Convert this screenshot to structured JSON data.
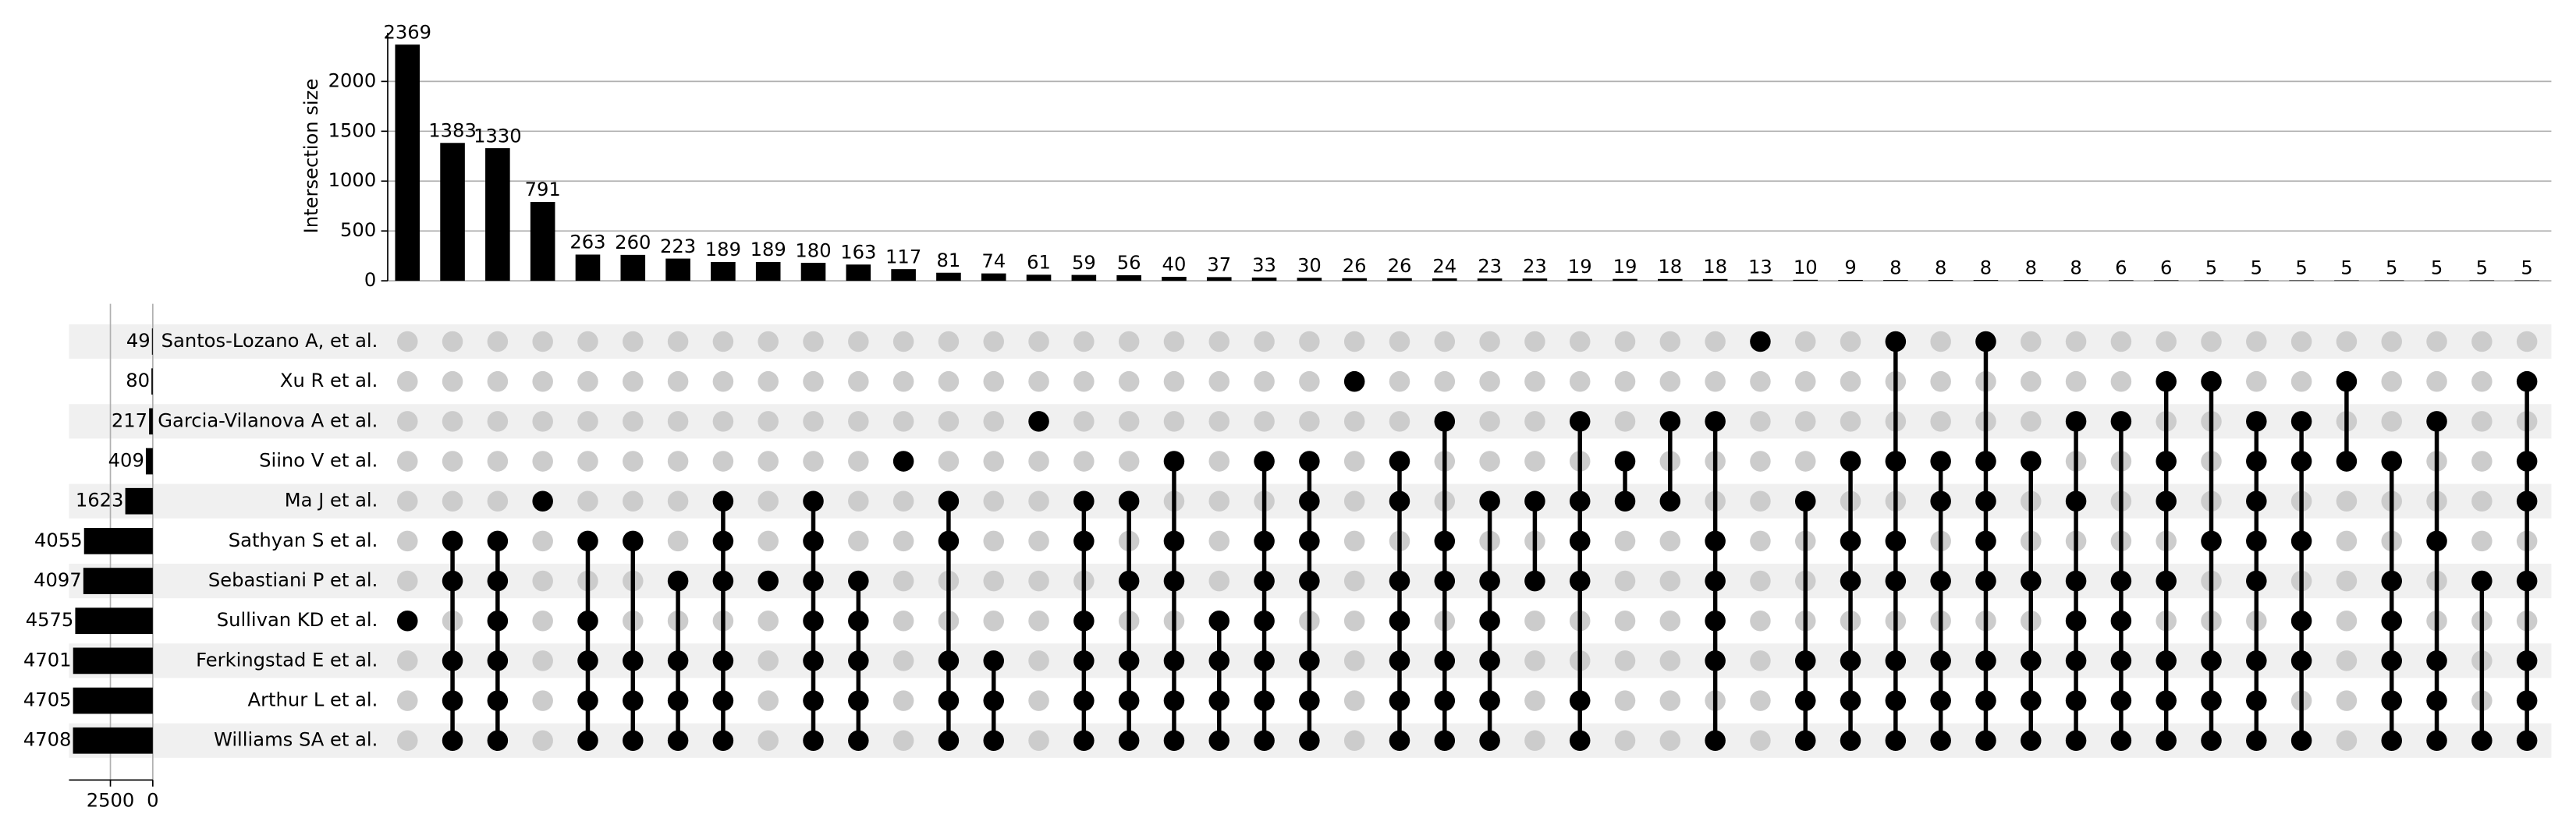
{
  "chart_data": {
    "type": "upset",
    "ylabel": "Intersection size",
    "sets": [
      "Santos-Lozano A, et al.",
      "Xu R et al.",
      "Garcia-Vilanova A et al.",
      "Siino V et al.",
      "Ma J et al.",
      "Sathyan S et al.",
      "Sebastiani P et al.",
      "Sullivan KD et al.",
      "Ferkingstad E et al.",
      "Arthur L et al.",
      "Williams SA et al."
    ],
    "set_sizes": [
      49,
      80,
      217,
      409,
      1623,
      4055,
      4097,
      4575,
      4701,
      4705,
      4708
    ],
    "set_xlim": [
      0,
      4943
    ],
    "set_xticks": [
      0,
      2500
    ],
    "values": [
      2369,
      1383,
      1330,
      791,
      263,
      260,
      223,
      189,
      189,
      180,
      163,
      117,
      81,
      74,
      61,
      59,
      56,
      40,
      37,
      33,
      30,
      26,
      26,
      24,
      23,
      23,
      19,
      19,
      18,
      18,
      13,
      10,
      9,
      8,
      8,
      8,
      8,
      8,
      6,
      6,
      5,
      5,
      5,
      5,
      5,
      5,
      5,
      5
    ],
    "members": [
      [
        7
      ],
      [
        5,
        6,
        8,
        9,
        10
      ],
      [
        5,
        6,
        7,
        8,
        9,
        10
      ],
      [
        4
      ],
      [
        5,
        7,
        8,
        9,
        10
      ],
      [
        5,
        8,
        9,
        10
      ],
      [
        6,
        8,
        9,
        10
      ],
      [
        4,
        5,
        6,
        8,
        9,
        10
      ],
      [
        6
      ],
      [
        4,
        5,
        6,
        7,
        8,
        9,
        10
      ],
      [
        6,
        7,
        8,
        9,
        10
      ],
      [
        3
      ],
      [
        4,
        5,
        8,
        9,
        10
      ],
      [
        8,
        9,
        10
      ],
      [
        2
      ],
      [
        4,
        5,
        7,
        8,
        9,
        10
      ],
      [
        4,
        6,
        8,
        9,
        10
      ],
      [
        3,
        5,
        6,
        8,
        9,
        10
      ],
      [
        7,
        8,
        9,
        10
      ],
      [
        3,
        5,
        6,
        7,
        8,
        9,
        10
      ],
      [
        3,
        4,
        5,
        6,
        8,
        9,
        10
      ],
      [
        1
      ],
      [
        3,
        4,
        6,
        7,
        8,
        9,
        10
      ],
      [
        2,
        5,
        6,
        8,
        9,
        10
      ],
      [
        4,
        6,
        7,
        8,
        9,
        10
      ],
      [
        4,
        6
      ],
      [
        2,
        4,
        5,
        6,
        9,
        10
      ],
      [
        3,
        4
      ],
      [
        2,
        4
      ],
      [
        2,
        5,
        6,
        7,
        8,
        10
      ],
      [
        0
      ],
      [
        4,
        8,
        9,
        10
      ],
      [
        3,
        5,
        6,
        8,
        9,
        10
      ],
      [
        0,
        3,
        5,
        6,
        8,
        9,
        10
      ],
      [
        3,
        4,
        6,
        8,
        9,
        10
      ],
      [
        0,
        3,
        4,
        5,
        6,
        8,
        9,
        10
      ],
      [
        3,
        6,
        8,
        9,
        10
      ],
      [
        2,
        4,
        6,
        7,
        8,
        9,
        10
      ],
      [
        2,
        6,
        7,
        8,
        9,
        10
      ],
      [
        1,
        3,
        4,
        6,
        8,
        9,
        10
      ],
      [
        1,
        5,
        8,
        9,
        10
      ],
      [
        2,
        3,
        4,
        5,
        6,
        8,
        9,
        10
      ],
      [
        2,
        3,
        5,
        7,
        8,
        10
      ],
      [
        1,
        3
      ],
      [
        3,
        6,
        7,
        8,
        9,
        10
      ],
      [
        2,
        5,
        8,
        9,
        10
      ],
      [
        6,
        10
      ],
      [
        1,
        3,
        4,
        6,
        8,
        9,
        10
      ]
    ],
    "ylim": [
      0,
      2487
    ],
    "yticks": [
      0,
      500,
      1000,
      1500,
      2000
    ],
    "grid": true,
    "color": "#000000",
    "inactive_color": "#cccccc",
    "stripe_color": "#f0f0f0"
  }
}
